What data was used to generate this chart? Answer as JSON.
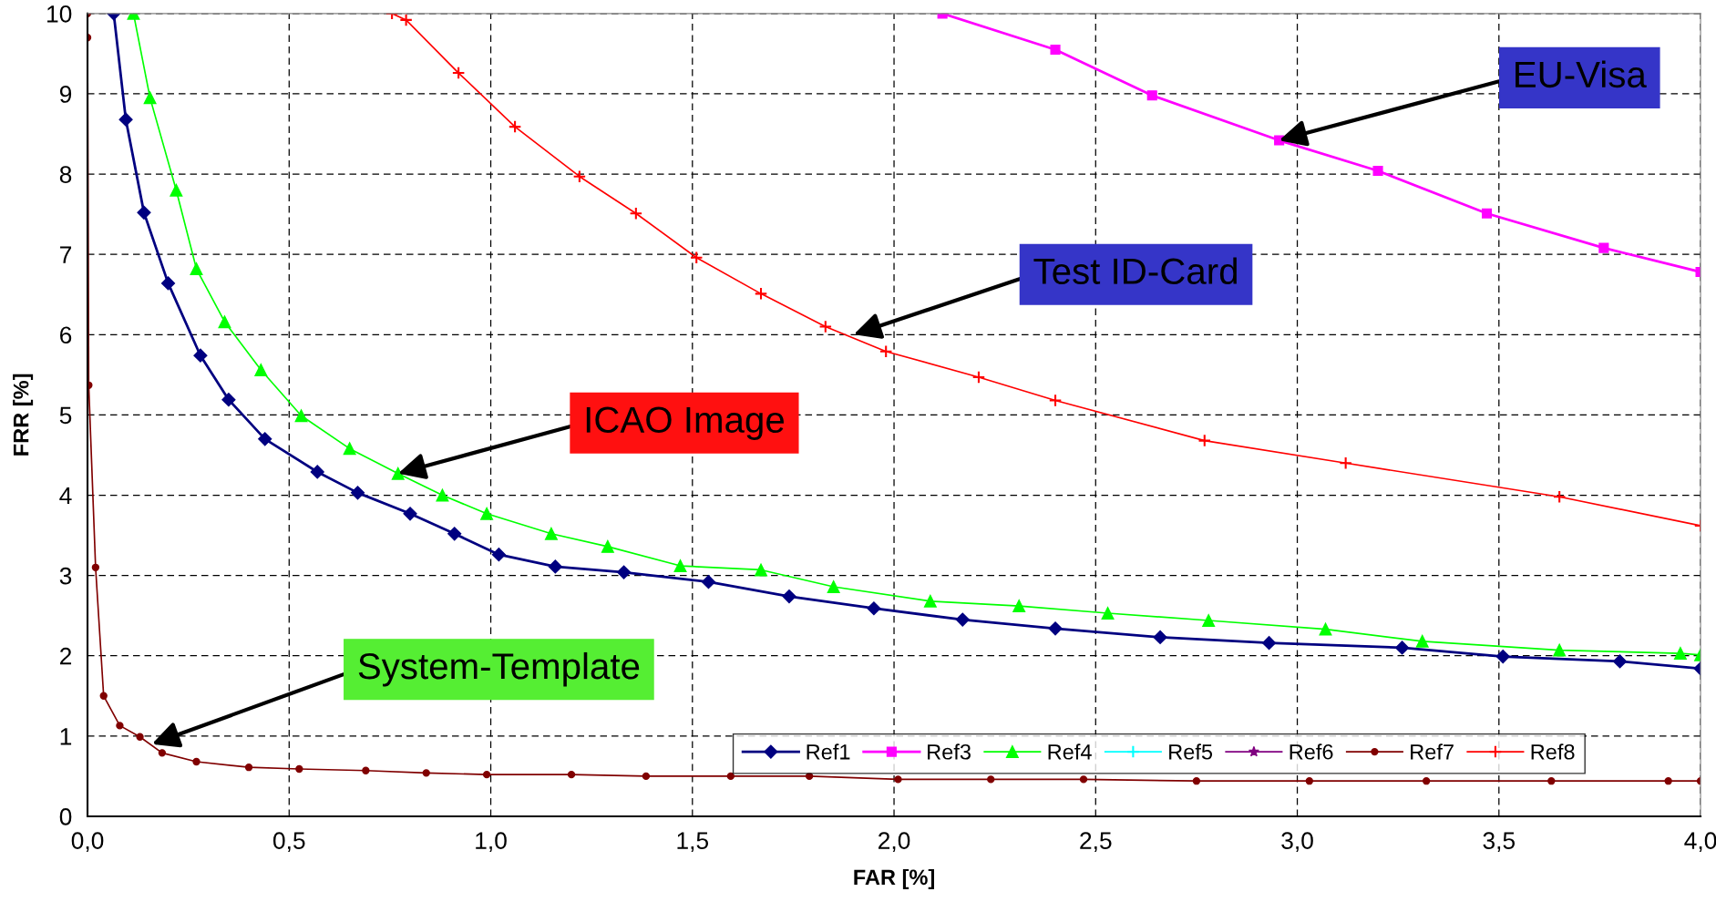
{
  "chart_data": {
    "type": "line",
    "xlabel": "FAR [%]",
    "ylabel": "FRR [%]",
    "xlim": [
      0,
      4
    ],
    "ylim": [
      0,
      10
    ],
    "xticks": [
      {
        "value": 0,
        "label": "0,0"
      },
      {
        "value": 0.5,
        "label": "0,5"
      },
      {
        "value": 1,
        "label": "1,0"
      },
      {
        "value": 1.5,
        "label": "1,5"
      },
      {
        "value": 2,
        "label": "2,0"
      },
      {
        "value": 2.5,
        "label": "2,5"
      },
      {
        "value": 3,
        "label": "3,0"
      },
      {
        "value": 3.5,
        "label": "3,5"
      },
      {
        "value": 4,
        "label": "4,0"
      }
    ],
    "yticks": [
      0,
      1,
      2,
      3,
      4,
      5,
      6,
      7,
      8,
      9,
      10
    ],
    "grid": true,
    "legend": "bottom right",
    "series": [
      {
        "name": "Ref1",
        "color": "#000080",
        "marker": "diamond",
        "x": [
          0.065,
          0.095,
          0.14,
          0.2,
          0.28,
          0.35,
          0.44,
          0.57,
          0.67,
          0.8,
          0.91,
          1.02,
          1.16,
          1.33,
          1.54,
          1.74,
          1.95,
          2.17,
          2.4,
          2.66,
          2.93,
          3.26,
          3.51,
          3.8,
          4.0
        ],
        "values": [
          10,
          8.68,
          7.52,
          6.64,
          5.74,
          5.19,
          4.7,
          4.29,
          4.03,
          3.77,
          3.52,
          3.26,
          3.11,
          3.04,
          2.92,
          2.74,
          2.59,
          2.45,
          2.34,
          2.23,
          2.16,
          2.1,
          1.99,
          1.93,
          1.84
        ]
      },
      {
        "name": "Ref3",
        "color": "#ff00ff",
        "marker": "square",
        "x": [
          2.12,
          2.4,
          2.64,
          2.955,
          3.2,
          3.47,
          3.76,
          4.0
        ],
        "values": [
          10,
          9.55,
          8.98,
          8.42,
          8.04,
          7.51,
          7.08,
          6.78
        ]
      },
      {
        "name": "Ref4",
        "color": "#00ff00",
        "marker": "triangle",
        "x": [
          0.114,
          0.155,
          0.22,
          0.27,
          0.34,
          0.43,
          0.53,
          0.65,
          0.77,
          0.88,
          0.99,
          1.15,
          1.29,
          1.47,
          1.67,
          1.85,
          2.09,
          2.31,
          2.53,
          2.78,
          3.07,
          3.31,
          3.65,
          3.95,
          4.0
        ],
        "values": [
          10,
          8.95,
          7.8,
          6.82,
          6.16,
          5.56,
          4.99,
          4.58,
          4.27,
          4.0,
          3.77,
          3.52,
          3.36,
          3.12,
          3.07,
          2.86,
          2.68,
          2.62,
          2.53,
          2.44,
          2.33,
          2.18,
          2.07,
          2.03,
          2.01
        ]
      },
      {
        "name": "Ref5",
        "color": "#00ffff",
        "marker": "cross"
      },
      {
        "name": "Ref6",
        "color": "#800080",
        "marker": "star"
      },
      {
        "name": "Ref7",
        "color": "#800000",
        "marker": "circle",
        "x": [
          0.0,
          0.0,
          0.003,
          0.02,
          0.04,
          0.08,
          0.13,
          0.185,
          0.27,
          0.4,
          0.525,
          0.69,
          0.84,
          0.99,
          1.2,
          1.385,
          1.595,
          1.79,
          2.01,
          2.24,
          2.47,
          2.75,
          3.03,
          3.32,
          3.63,
          3.92,
          4.0
        ],
        "values": [
          10,
          9.7,
          5.37,
          3.1,
          1.5,
          1.13,
          0.99,
          0.79,
          0.68,
          0.61,
          0.59,
          0.57,
          0.54,
          0.52,
          0.52,
          0.5,
          0.5,
          0.5,
          0.46,
          0.46,
          0.46,
          0.44,
          0.44,
          0.44,
          0.44,
          0.44,
          0.44
        ]
      },
      {
        "name": "Ref8",
        "color": "#ff0000",
        "marker": "cross",
        "x": [
          0.755,
          0.79,
          0.92,
          1.06,
          1.22,
          1.36,
          1.51,
          1.67,
          1.83,
          1.98,
          2.21,
          2.4,
          2.77,
          3.12,
          3.65,
          4.0
        ],
        "values": [
          10,
          9.92,
          9.26,
          8.59,
          7.97,
          7.51,
          6.96,
          6.51,
          6.1,
          5.79,
          5.47,
          5.18,
          4.68,
          4.4,
          3.98,
          3.62
        ]
      }
    ],
    "annotations": [
      {
        "text": "EU-Visa",
        "x": 2.955,
        "y": 8.42
      },
      {
        "text": "Test ID-Card",
        "x": 1.9,
        "y": 6.0
      },
      {
        "text": "ICAO Image",
        "x": 0.77,
        "y": 4.27
      },
      {
        "text": "System-Template",
        "x": 0.16,
        "y": 0.9
      }
    ]
  }
}
